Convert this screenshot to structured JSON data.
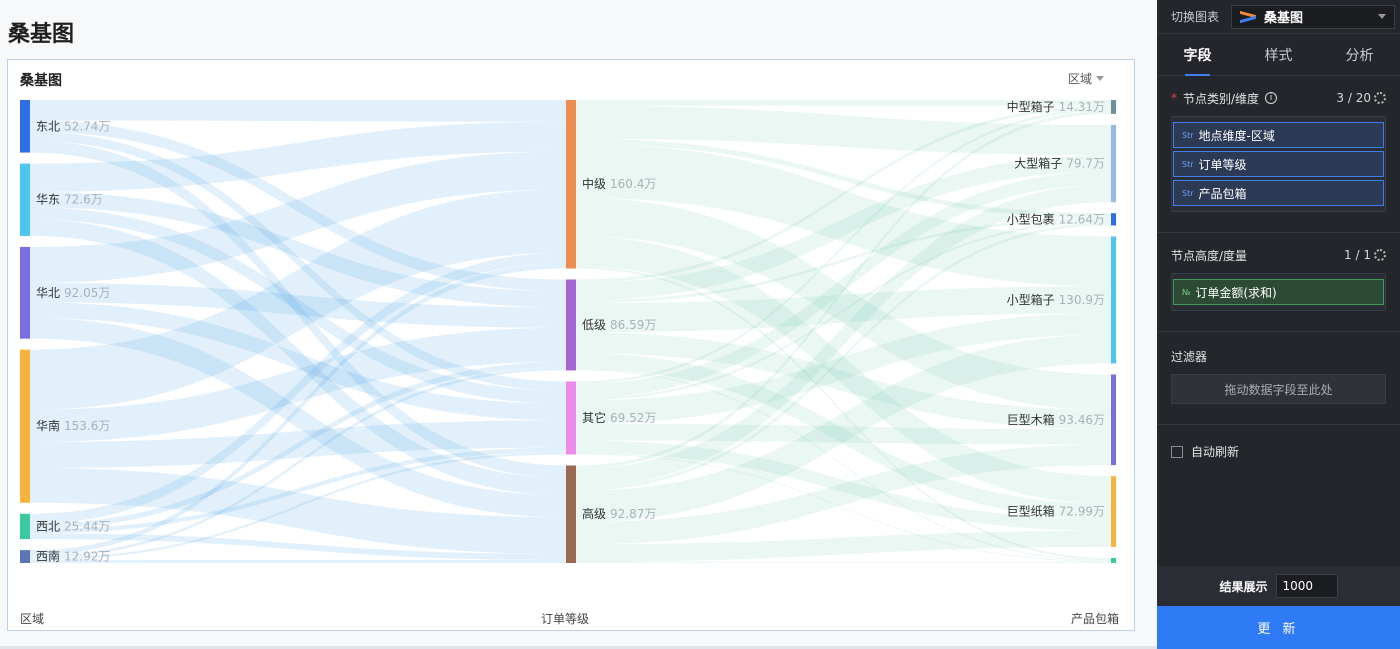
{
  "page": {
    "title": "桑基图"
  },
  "card": {
    "title": "桑基图",
    "legend_select": "区域"
  },
  "axis": {
    "left": "区域",
    "middle": "订单等级",
    "right": "产品包箱"
  },
  "chart_data": {
    "type": "sankey",
    "levels": [
      "区域",
      "订单等级",
      "产品包箱"
    ],
    "nodes": [
      {
        "name": "东北",
        "value": 52.74,
        "label": "52.74万",
        "level": 0,
        "color": "#2f6fe4"
      },
      {
        "name": "华东",
        "value": 72.6,
        "label": "72.6万",
        "level": 0,
        "color": "#4fc6ec"
      },
      {
        "name": "华北",
        "value": 92.05,
        "label": "92.05万",
        "level": 0,
        "color": "#7b6fe0"
      },
      {
        "name": "华南",
        "value": 153.6,
        "label": "153.6万",
        "level": 0,
        "color": "#f7b43c"
      },
      {
        "name": "西北",
        "value": 25.44,
        "label": "25.44万",
        "level": 0,
        "color": "#3cc9a0"
      },
      {
        "name": "西南",
        "value": 12.92,
        "label": "12.92万",
        "level": 0,
        "color": "#5c74b8"
      },
      {
        "name": "中级",
        "value": 160.4,
        "label": "160.4万",
        "level": 1,
        "color": "#ef8c4f"
      },
      {
        "name": "低级",
        "value": 86.59,
        "label": "86.59万",
        "level": 1,
        "color": "#a466d3"
      },
      {
        "name": "其它",
        "value": 69.52,
        "label": "69.52万",
        "level": 1,
        "color": "#ee8ae8"
      },
      {
        "name": "高级",
        "value": 92.87,
        "label": "92.87万",
        "level": 1,
        "color": "#9a6a55"
      },
      {
        "name": "中型箱子",
        "value": 14.31,
        "label": "14.31万",
        "level": 2,
        "color": "#6f8f9c"
      },
      {
        "name": "大型箱子",
        "value": 79.7,
        "label": "79.7万",
        "level": 2,
        "color": "#9ab8e4"
      },
      {
        "name": "小型包裹",
        "value": 12.64,
        "label": "12.64万",
        "level": 2,
        "color": "#2f6fe4"
      },
      {
        "name": "小型箱子",
        "value": 130.9,
        "label": "130.9万",
        "level": 2,
        "color": "#4fc6ec"
      },
      {
        "name": "巨型木箱",
        "value": 93.46,
        "label": "93.46万",
        "level": 2,
        "color": "#7b6fe0"
      },
      {
        "name": "巨型纸箱",
        "value": 72.99,
        "label": "72.99万",
        "level": 2,
        "color": "#f7b43c"
      },
      {
        "name": "",
        "value": 5.2,
        "label": "",
        "level": 2,
        "color": "#3cc9a0"
      }
    ]
  },
  "panel": {
    "switch_label": "切换图表",
    "chart_type": "桑基图",
    "tabs": [
      "字段",
      "样式",
      "分析"
    ],
    "dimension": {
      "title": "节点类别/维度",
      "count": "3 / 20",
      "fields": [
        {
          "tag": "Str",
          "label": "地点维度-区域"
        },
        {
          "tag": "Str",
          "label": "订单等级"
        },
        {
          "tag": "Str",
          "label": "产品包箱"
        }
      ]
    },
    "measure": {
      "title": "节点高度/度量",
      "count": "1 / 1",
      "fields": [
        {
          "tag": "№",
          "label": "订单金额(求和)"
        }
      ]
    },
    "filter": {
      "title": "过滤器",
      "placeholder": "拖动数据字段至此处"
    },
    "auto_refresh": "自动刷新",
    "result_label": "结果展示",
    "result_value": "1000",
    "update_button": "更 新"
  }
}
